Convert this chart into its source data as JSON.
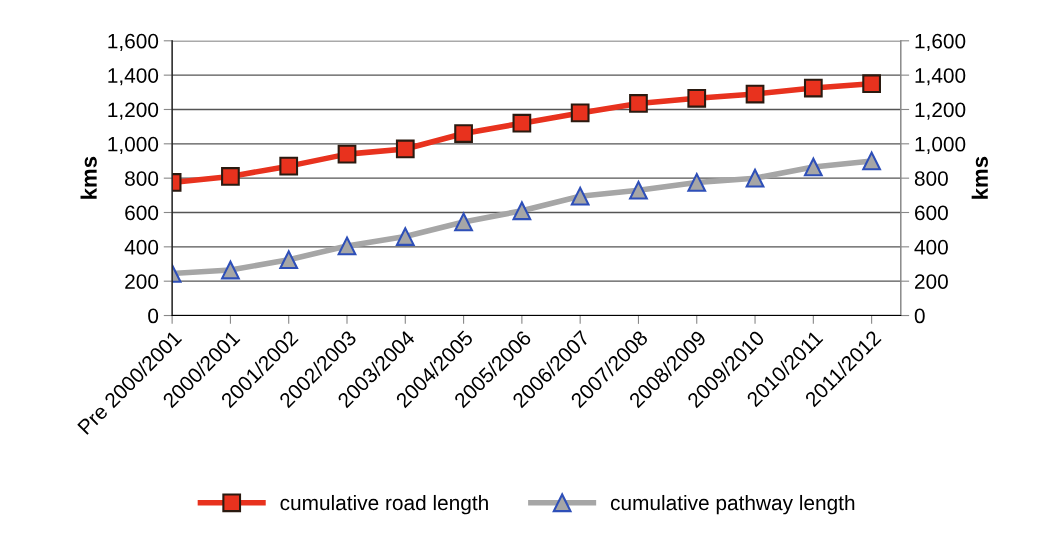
{
  "chart_data": {
    "type": "line",
    "ylabel": "kms",
    "y2label": "kms",
    "categories": [
      "Pre 2000/2001",
      "2000/2001",
      "2001/2002",
      "2002/2003",
      "2003/2004",
      "2004/2005",
      "2005/2006",
      "2006/2007",
      "2007/2008",
      "2008/2009",
      "2009/2010",
      "2010/2011",
      "2011/2012"
    ],
    "series": [
      {
        "name": "cumulative road length",
        "color": "#e8321e",
        "marker": "square",
        "values": [
          775,
          810,
          870,
          940,
          970,
          1060,
          1120,
          1180,
          1235,
          1265,
          1290,
          1325,
          1350
        ]
      },
      {
        "name": "cumulative pathway length",
        "color": "#a6a6a6",
        "marker": "triangle",
        "values": [
          245,
          265,
          325,
          405,
          460,
          545,
          610,
          695,
          730,
          775,
          800,
          865,
          900
        ]
      }
    ],
    "ylim": [
      0,
      1600
    ],
    "yticks": [
      {
        "value": 0,
        "label": "0"
      },
      {
        "value": 200,
        "label": "200"
      },
      {
        "value": 400,
        "label": "400"
      },
      {
        "value": 600,
        "label": "600"
      },
      {
        "value": 800,
        "label": "800"
      },
      {
        "value": 1000,
        "label": "1,000"
      },
      {
        "value": 1200,
        "label": "1,200"
      },
      {
        "value": 1400,
        "label": "1,400"
      },
      {
        "value": 1600,
        "label": "1,600"
      }
    ],
    "y2lim": [
      0,
      1600
    ],
    "y2ticks": [
      {
        "value": 0,
        "label": "0"
      },
      {
        "value": 200,
        "label": "200"
      },
      {
        "value": 400,
        "label": "400"
      },
      {
        "value": 600,
        "label": "600"
      },
      {
        "value": 800,
        "label": "800"
      },
      {
        "value": 1000,
        "label": "1,000"
      },
      {
        "value": 1200,
        "label": "1,200"
      },
      {
        "value": 1400,
        "label": "1,400"
      },
      {
        "value": 1600,
        "label": "1,600"
      }
    ],
    "grid": "y",
    "legend": "bottom"
  }
}
